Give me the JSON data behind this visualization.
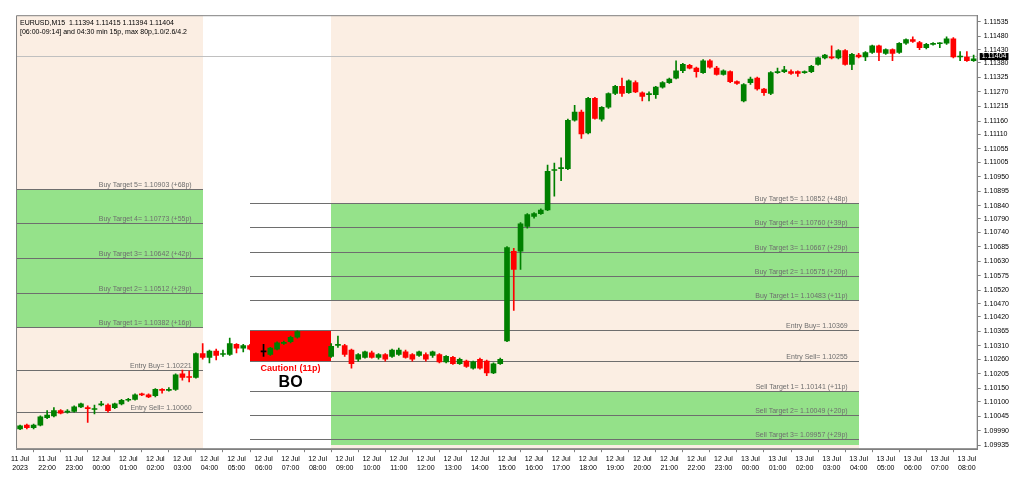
{
  "chart_data": {
    "type": "candlestick",
    "title": "EURUSD,M15  1.11394 1.11415 1.11394 1.11404",
    "subtitle": "[06:00-09:14] and 04:30 min 15p, max 80p,1.0/2.6/4.2",
    "x": [
      "2023-07-11T21:00",
      "2023-07-11T21:15",
      "2023-07-11T21:30",
      "2023-07-11T21:45",
      "2023-07-11T22:00",
      "2023-07-11T22:15",
      "2023-07-11T22:30",
      "2023-07-11T22:45",
      "2023-07-11T23:00",
      "2023-07-11T23:15",
      "2023-07-11T23:30",
      "2023-07-11T23:45",
      "2023-07-12T00:00",
      "2023-07-12T00:15",
      "2023-07-12T00:30",
      "2023-07-12T00:45",
      "2023-07-12T01:00",
      "2023-07-12T01:15",
      "2023-07-12T01:30",
      "2023-07-12T01:45",
      "2023-07-12T02:00",
      "2023-07-12T02:15",
      "2023-07-12T02:30",
      "2023-07-12T02:45",
      "2023-07-12T03:00",
      "2023-07-12T03:15",
      "2023-07-12T03:30",
      "2023-07-12T03:45",
      "2023-07-12T04:00",
      "2023-07-12T04:15",
      "2023-07-12T04:30",
      "2023-07-12T04:45",
      "2023-07-12T05:00",
      "2023-07-12T05:15",
      "2023-07-12T05:30",
      "2023-07-12T06:00",
      "2023-07-12T06:15",
      "2023-07-12T06:30",
      "2023-07-12T06:45",
      "2023-07-12T07:00",
      "2023-07-12T07:15",
      "2023-07-12T08:30",
      "2023-07-12T08:45",
      "2023-07-12T09:00",
      "2023-07-12T09:15",
      "2023-07-12T09:30",
      "2023-07-12T09:45",
      "2023-07-12T10:00",
      "2023-07-12T10:15",
      "2023-07-12T10:30",
      "2023-07-12T10:45",
      "2023-07-12T11:00",
      "2023-07-12T11:15",
      "2023-07-12T11:30",
      "2023-07-12T11:45",
      "2023-07-12T12:00",
      "2023-07-12T12:15",
      "2023-07-12T12:30",
      "2023-07-12T12:45",
      "2023-07-12T13:00",
      "2023-07-12T13:15",
      "2023-07-12T13:30",
      "2023-07-12T13:45",
      "2023-07-12T14:00",
      "2023-07-12T14:15",
      "2023-07-12T14:30",
      "2023-07-12T14:45",
      "2023-07-12T15:00",
      "2023-07-12T15:15",
      "2023-07-12T15:30",
      "2023-07-12T15:45",
      "2023-07-12T16:00",
      "2023-07-12T16:15",
      "2023-07-12T16:30",
      "2023-07-12T16:45",
      "2023-07-12T17:00",
      "2023-07-12T17:15",
      "2023-07-12T17:30",
      "2023-07-12T17:45",
      "2023-07-12T18:00",
      "2023-07-12T18:15",
      "2023-07-12T18:30",
      "2023-07-12T18:45",
      "2023-07-12T19:00",
      "2023-07-12T19:15",
      "2023-07-12T19:30",
      "2023-07-12T19:45",
      "2023-07-12T20:00",
      "2023-07-12T20:15",
      "2023-07-12T20:30",
      "2023-07-12T20:45",
      "2023-07-12T21:00",
      "2023-07-12T21:15",
      "2023-07-12T21:30",
      "2023-07-12T21:45",
      "2023-07-12T22:00",
      "2023-07-12T22:15",
      "2023-07-12T22:30",
      "2023-07-12T22:45",
      "2023-07-12T23:00",
      "2023-07-12T23:15",
      "2023-07-12T23:30",
      "2023-07-12T23:45",
      "2023-07-13T00:00",
      "2023-07-13T00:15",
      "2023-07-13T00:30",
      "2023-07-13T00:45",
      "2023-07-13T01:00",
      "2023-07-13T01:15",
      "2023-07-13T01:30",
      "2023-07-13T01:45",
      "2023-07-13T02:00",
      "2023-07-13T02:15",
      "2023-07-13T02:30",
      "2023-07-13T02:45",
      "2023-07-13T03:00",
      "2023-07-13T03:15",
      "2023-07-13T03:30",
      "2023-07-13T03:45",
      "2023-07-13T04:00",
      "2023-07-13T04:15",
      "2023-07-13T04:30",
      "2023-07-13T04:45",
      "2023-07-13T05:00",
      "2023-07-13T05:15",
      "2023-07-13T05:30",
      "2023-07-13T05:45",
      "2023-07-13T06:00",
      "2023-07-13T06:15",
      "2023-07-13T06:30",
      "2023-07-13T06:45",
      "2023-07-13T07:00",
      "2023-07-13T07:15",
      "2023-07-13T07:30",
      "2023-07-13T07:45",
      "2023-07-13T08:00",
      "2023-07-13T08:15"
    ],
    "ohlc": [
      [
        1.09997,
        1.10011,
        1.09994,
        1.10008
      ],
      [
        1.10011,
        1.10015,
        1.09997,
        1.10001
      ],
      [
        1.10001,
        1.10015,
        1.09997,
        1.10011
      ],
      [
        1.10011,
        1.10046,
        1.10008,
        1.10042
      ],
      [
        1.10039,
        1.10066,
        1.10035,
        1.10049
      ],
      [
        1.10046,
        1.10077,
        1.10042,
        1.10066
      ],
      [
        1.10066,
        1.1007,
        1.10053,
        1.10056
      ],
      [
        1.1006,
        1.1007,
        1.10056,
        1.10063
      ],
      [
        1.10063,
        1.10084,
        1.1006,
        1.1008
      ],
      [
        1.1008,
        1.10094,
        1.10077,
        1.10091
      ],
      [
        1.10077,
        1.10084,
        1.10021,
        1.10073
      ],
      [
        1.1007,
        1.10087,
        1.10053,
        1.10073
      ],
      [
        1.10087,
        1.10101,
        1.10084,
        1.10091
      ],
      [
        1.10087,
        1.10091,
        1.1006,
        1.10066
      ],
      [
        1.10077,
        1.10094,
        1.10073,
        1.10091
      ],
      [
        1.10091,
        1.10108,
        1.10087,
        1.10105
      ],
      [
        1.10105,
        1.10112,
        1.10101,
        1.10108
      ],
      [
        1.10108,
        1.10129,
        1.10105,
        1.10125
      ],
      [
        1.10127,
        1.10132,
        1.10122,
        1.10125
      ],
      [
        1.10125,
        1.10129,
        1.10115,
        1.10118
      ],
      [
        1.10122,
        1.10149,
        1.10118,
        1.10146
      ],
      [
        1.10146,
        1.10149,
        1.10132,
        1.10142
      ],
      [
        1.10142,
        1.10153,
        1.10139,
        1.10146
      ],
      [
        1.10146,
        1.10205,
        1.10142,
        1.10201
      ],
      [
        1.10205,
        1.10219,
        1.10181,
        1.10191
      ],
      [
        1.10194,
        1.10215,
        1.10174,
        1.10191
      ],
      [
        1.10191,
        1.10284,
        1.10188,
        1.10281
      ],
      [
        1.10281,
        1.10319,
        1.1026,
        1.10267
      ],
      [
        1.10267,
        1.10295,
        1.10246,
        1.10291
      ],
      [
        1.10291,
        1.10298,
        1.10257,
        1.10274
      ],
      [
        1.10278,
        1.10295,
        1.10271,
        1.10281
      ],
      [
        1.10278,
        1.1034,
        1.10274,
        1.10319
      ],
      [
        1.10316,
        1.10319,
        1.10284,
        1.10302
      ],
      [
        1.10302,
        1.10316,
        1.10288,
        1.10312
      ],
      [
        1.10312,
        1.10316,
        1.10295,
        1.10298
      ],
      [
        1.10288,
        1.10316,
        1.10271,
        1.10288
      ],
      [
        1.10278,
        1.10305,
        1.10274,
        1.10302
      ],
      [
        1.10298,
        1.10326,
        1.10295,
        1.10322
      ],
      [
        1.1032,
        1.10329,
        1.10316,
        1.10324
      ],
      [
        1.10326,
        1.10347,
        1.10322,
        1.10343
      ],
      [
        1.10343,
        1.10367,
        1.1034,
        1.10364
      ],
      [
        1.10271,
        1.10319,
        1.10267,
        1.10309
      ],
      [
        1.10312,
        1.10347,
        1.10305,
        1.10316
      ],
      [
        1.10312,
        1.10316,
        1.10271,
        1.10278
      ],
      [
        1.10295,
        1.10298,
        1.10226,
        1.10243
      ],
      [
        1.1026,
        1.10281,
        1.10253,
        1.10278
      ],
      [
        1.10267,
        1.10291,
        1.10264,
        1.10288
      ],
      [
        1.10284,
        1.10291,
        1.10264,
        1.10267
      ],
      [
        1.10267,
        1.10281,
        1.1026,
        1.10278
      ],
      [
        1.10278,
        1.10281,
        1.10253,
        1.1026
      ],
      [
        1.10271,
        1.10298,
        1.10267,
        1.10295
      ],
      [
        1.10278,
        1.10302,
        1.10274,
        1.10295
      ],
      [
        1.10288,
        1.10295,
        1.10264,
        1.10267
      ],
      [
        1.10278,
        1.10281,
        1.10253,
        1.1026
      ],
      [
        1.10274,
        1.10291,
        1.10271,
        1.10288
      ],
      [
        1.10278,
        1.10284,
        1.10253,
        1.1026
      ],
      [
        1.10274,
        1.10291,
        1.10267,
        1.10288
      ],
      [
        1.10278,
        1.10281,
        1.10246,
        1.1025
      ],
      [
        1.1025,
        1.10274,
        1.10246,
        1.10271
      ],
      [
        1.10267,
        1.10271,
        1.1024,
        1.10243
      ],
      [
        1.10243,
        1.10264,
        1.1024,
        1.1026
      ],
      [
        1.10253,
        1.10257,
        1.10229,
        1.10233
      ],
      [
        1.10226,
        1.10253,
        1.10222,
        1.1025
      ],
      [
        1.1026,
        1.10264,
        1.10222,
        1.10226
      ],
      [
        1.10253,
        1.10257,
        1.10198,
        1.10208
      ],
      [
        1.10208,
        1.10246,
        1.10205,
        1.10243
      ],
      [
        1.10243,
        1.10264,
        1.1024,
        1.1026
      ],
      [
        1.10329,
        1.10686,
        1.10326,
        1.10682
      ],
      [
        1.10668,
        1.10679,
        1.10444,
        1.10599
      ],
      [
        1.10668,
        1.10776,
        1.10599,
        1.10772
      ],
      [
        1.10762,
        1.1081,
        1.10755,
        1.10807
      ],
      [
        1.108,
        1.10814,
        1.10793,
        1.1081
      ],
      [
        1.1081,
        1.10828,
        1.10807,
        1.10824
      ],
      [
        1.10824,
        1.10994,
        1.10821,
        1.1097
      ],
      [
        1.10973,
        1.11001,
        1.10876,
        1.10976
      ],
      [
        1.1098,
        1.11021,
        1.10935,
        1.10983
      ],
      [
        1.1098,
        1.11167,
        1.10976,
        1.11163
      ],
      [
        1.11163,
        1.11219,
        1.1116,
        1.11194
      ],
      [
        1.11194,
        1.11201,
        1.11094,
        1.11111
      ],
      [
        1.11115,
        1.1125,
        1.11111,
        1.11246
      ],
      [
        1.11246,
        1.1125,
        1.11167,
        1.1117
      ],
      [
        1.11167,
        1.11215,
        1.1116,
        1.11212
      ],
      [
        1.11212,
        1.11267,
        1.11208,
        1.11264
      ],
      [
        1.11264,
        1.11295,
        1.1126,
        1.11291
      ],
      [
        1.11291,
        1.11322,
        1.11253,
        1.11264
      ],
      [
        1.11267,
        1.11316,
        1.11264,
        1.11312
      ],
      [
        1.11305,
        1.11312,
        1.11267,
        1.1127
      ],
      [
        1.11267,
        1.1127,
        1.11236,
        1.11253
      ],
      [
        1.1126,
        1.1127,
        1.11236,
        1.11262
      ],
      [
        1.1126,
        1.11291,
        1.11246,
        1.11288
      ],
      [
        1.11288,
        1.11309,
        1.11284,
        1.11305
      ],
      [
        1.11305,
        1.11322,
        1.11302,
        1.11319
      ],
      [
        1.11322,
        1.11388,
        1.11319,
        1.1135
      ],
      [
        1.1135,
        1.11378,
        1.11343,
        1.11374
      ],
      [
        1.11371,
        1.11374,
        1.11357,
        1.1136
      ],
      [
        1.1136,
        1.11364,
        1.11326,
        1.11347
      ],
      [
        1.11343,
        1.11392,
        1.1134,
        1.11388
      ],
      [
        1.11388,
        1.11392,
        1.1136,
        1.11364
      ],
      [
        1.1136,
        1.11367,
        1.11333,
        1.11336
      ],
      [
        1.11336,
        1.11354,
        1.11333,
        1.1135
      ],
      [
        1.11347,
        1.1135,
        1.11305,
        1.11309
      ],
      [
        1.11309,
        1.11312,
        1.11298,
        1.11302
      ],
      [
        1.11236,
        1.11302,
        1.11232,
        1.11298
      ],
      [
        1.11305,
        1.11326,
        1.11298,
        1.11319
      ],
      [
        1.11322,
        1.11326,
        1.11277,
        1.11281
      ],
      [
        1.11281,
        1.11284,
        1.11257,
        1.11267
      ],
      [
        1.11264,
        1.11347,
        1.1126,
        1.11343
      ],
      [
        1.11343,
        1.1136,
        1.1134,
        1.11347
      ],
      [
        1.11347,
        1.11367,
        1.11343,
        1.11354
      ],
      [
        1.11347,
        1.11354,
        1.11336,
        1.1134
      ],
      [
        1.11347,
        1.1135,
        1.11329,
        1.1134
      ],
      [
        1.11343,
        1.1135,
        1.1134,
        1.11347
      ],
      [
        1.11347,
        1.11371,
        1.11343,
        1.11367
      ],
      [
        1.11374,
        1.11402,
        1.11371,
        1.11399
      ],
      [
        1.11399,
        1.11412,
        1.11395,
        1.11409
      ],
      [
        1.11402,
        1.11444,
        1.11395,
        1.11399
      ],
      [
        1.11399,
        1.1143,
        1.11395,
        1.11426
      ],
      [
        1.11426,
        1.1143,
        1.11371,
        1.11374
      ],
      [
        1.11374,
        1.11416,
        1.11354,
        1.11412
      ],
      [
        1.11409,
        1.11416,
        1.11399,
        1.11402
      ],
      [
        1.11402,
        1.11423,
        1.11388,
        1.11419
      ],
      [
        1.11419,
        1.11447,
        1.11416,
        1.11444
      ],
      [
        1.11444,
        1.11447,
        1.11388,
        1.11419
      ],
      [
        1.11416,
        1.11433,
        1.11412,
        1.1143
      ],
      [
        1.1143,
        1.11433,
        1.11388,
        1.11416
      ],
      [
        1.11419,
        1.11457,
        1.11416,
        1.11454
      ],
      [
        1.11454,
        1.11471,
        1.1145,
        1.11468
      ],
      [
        1.11468,
        1.11478,
        1.11457,
        1.11461
      ],
      [
        1.11457,
        1.11461,
        1.1143,
        1.11437
      ],
      [
        1.11437,
        1.11454,
        1.11433,
        1.1145
      ],
      [
        1.1145,
        1.11457,
        1.11447,
        1.11454
      ],
      [
        1.11452,
        1.11457,
        1.11437,
        1.11454
      ],
      [
        1.11454,
        1.11478,
        1.1145,
        1.11471
      ],
      [
        1.11471,
        1.11475,
        1.11399,
        1.11402
      ],
      [
        1.11402,
        1.11423,
        1.11388,
        1.11404
      ],
      [
        1.11402,
        1.11423,
        1.11385,
        1.11388
      ],
      [
        1.11388,
        1.11409,
        1.11385,
        1.11395
      ]
    ],
    "colors": [
      "#008000",
      "#ff0000",
      "#008000",
      "#008000",
      "#008000",
      "#008000",
      "#ff0000",
      "#008000",
      "#008000",
      "#008000",
      "#ff0000",
      "#008000",
      "#008000",
      "#ff0000",
      "#008000",
      "#008000",
      "#008000",
      "#008000",
      "#ff0000",
      "#ff0000",
      "#008000",
      "#ff0000",
      "#008000",
      "#008000",
      "#ff0000",
      "#ff0000",
      "#008000",
      "#ff0000",
      "#008000",
      "#ff0000",
      "#008000",
      "#008000",
      "#ff0000",
      "#008000",
      "#ff0000",
      "#000000",
      "#008000",
      "#008000",
      "#008000",
      "#008000",
      "#008000",
      "#008000",
      "#008000",
      "#ff0000",
      "#ff0000",
      "#008000",
      "#008000",
      "#ff0000",
      "#008000",
      "#ff0000",
      "#008000",
      "#008000",
      "#ff0000",
      "#ff0000",
      "#008000",
      "#ff0000",
      "#008000",
      "#ff0000",
      "#008000",
      "#ff0000",
      "#008000",
      "#ff0000",
      "#008000",
      "#ff0000",
      "#ff0000",
      "#008000",
      "#008000",
      "#008000",
      "#ff0000",
      "#008000",
      "#008000",
      "#008000",
      "#008000",
      "#008000",
      "#008000",
      "#008000",
      "#008000",
      "#008000",
      "#ff0000",
      "#008000",
      "#ff0000",
      "#008000",
      "#008000",
      "#008000",
      "#ff0000",
      "#008000",
      "#ff0000",
      "#ff0000",
      "#008000",
      "#008000",
      "#008000",
      "#008000",
      "#008000",
      "#008000",
      "#ff0000",
      "#ff0000",
      "#008000",
      "#ff0000",
      "#ff0000",
      "#008000",
      "#ff0000",
      "#ff0000",
      "#008000",
      "#008000",
      "#ff0000",
      "#ff0000",
      "#008000",
      "#008000",
      "#008000",
      "#ff0000",
      "#ff0000",
      "#008000",
      "#008000",
      "#008000",
      "#008000",
      "#ff0000",
      "#008000",
      "#ff0000",
      "#008000",
      "#ff0000",
      "#008000",
      "#008000",
      "#ff0000",
      "#008000",
      "#ff0000",
      "#008000",
      "#008000",
      "#ff0000",
      "#ff0000",
      "#008000",
      "#008000",
      "#008000",
      "#008000",
      "#ff0000",
      "#008000",
      "#ff0000",
      "#008000"
    ],
    "series": [
      {
        "type": "line",
        "color": "#95e28a",
        "x": [
          "2023-07-11T20:51",
          "2023-07-12T03:45"
        ],
        "values": [
          null,
          null
        ],
        "lower": [
          1.10382,
          1.10382
        ],
        "upper": [
          1.10903,
          1.10903
        ]
      },
      {
        "type": "line",
        "color": "#95e28a",
        "x": [
          "2023-07-12T08:30",
          "2023-07-13T04:00"
        ],
        "values": [
          null,
          null
        ],
        "lower": [
          1.10483,
          1.10483
        ],
        "upper": [
          1.10852,
          1.10852
        ]
      },
      {
        "type": "line",
        "color": "#94e189",
        "x": [
          "2023-07-12T08:30",
          "2023-07-13T04:00"
        ],
        "values": [
          null,
          null
        ],
        "lower": [
          1.09935,
          1.09935
        ],
        "upper": [
          1.10141,
          1.10141
        ]
      },
      {
        "type": "line",
        "name": "Caution! (11p)",
        "color": "#ff0000",
        "x": [
          "2023-07-12T05:30",
          "2023-07-12T08:30"
        ],
        "values": [
          null,
          null
        ],
        "lower": [
          1.10255,
          1.10255
        ],
        "upper": [
          1.10369,
          1.10369
        ]
      },
      {
        "type": "line",
        "name": "Buy Target 5= 1.10903 (+68p)",
        "color": "#6e6e6e",
        "x": [
          "2023-07-11T20:51",
          "2023-07-12T03:45"
        ],
        "values": [
          1.10903,
          1.10903
        ]
      },
      {
        "type": "line",
        "name": "Buy Target 4= 1.10773 (+55p)",
        "color": "#6e6e6e",
        "x": [
          "2023-07-11T20:51",
          "2023-07-12T03:45"
        ],
        "values": [
          1.10773,
          1.10773
        ]
      },
      {
        "type": "line",
        "name": "Buy Target 3= 1.10642 (+42p)",
        "color": "#6e6e6e",
        "x": [
          "2023-07-11T20:51",
          "2023-07-12T03:45"
        ],
        "values": [
          1.10642,
          1.10642
        ]
      },
      {
        "type": "line",
        "name": "Buy Target 2= 1.10512 (+29p)",
        "color": "#6e6e6e",
        "x": [
          "2023-07-11T20:51",
          "2023-07-12T03:45"
        ],
        "values": [
          1.10512,
          1.10512
        ]
      },
      {
        "type": "line",
        "name": "Buy Target 1= 1.10382 (+16p)",
        "color": "#6e6e6e",
        "x": [
          "2023-07-11T20:51",
          "2023-07-12T03:45"
        ],
        "values": [
          1.10382,
          1.10382
        ]
      },
      {
        "type": "line",
        "name": "Entry Buy= 1.10221",
        "color": "#6e6e6e",
        "x": [
          "2023-07-11T20:51",
          "2023-07-12T03:45"
        ],
        "values": [
          1.10221,
          1.10221
        ]
      },
      {
        "type": "line",
        "name": "Entry Sell= 1.10060",
        "color": "#6e6e6e",
        "x": [
          "2023-07-11T20:51",
          "2023-07-12T03:45"
        ],
        "values": [
          1.1006,
          1.1006
        ]
      },
      {
        "type": "line",
        "name": "Buy Target 5= 1.10852 (+48p)",
        "color": "#6e6e6e",
        "x": [
          "2023-07-12T05:30",
          "2023-07-13T04:00"
        ],
        "values": [
          1.10852,
          1.10852
        ]
      },
      {
        "type": "line",
        "name": "Buy Target 4= 1.10760 (+39p)",
        "color": "#6e6e6e",
        "x": [
          "2023-07-12T05:30",
          "2023-07-13T04:00"
        ],
        "values": [
          1.1076,
          1.1076
        ]
      },
      {
        "type": "line",
        "name": "Buy Target 3= 1.10667 (+29p)",
        "color": "#6e6e6e",
        "x": [
          "2023-07-12T05:30",
          "2023-07-13T04:00"
        ],
        "values": [
          1.10667,
          1.10667
        ]
      },
      {
        "type": "line",
        "name": "Buy Target 2= 1.10575 (+20p)",
        "color": "#6e6e6e",
        "x": [
          "2023-07-12T05:30",
          "2023-07-13T04:00"
        ],
        "values": [
          1.10575,
          1.10575
        ]
      },
      {
        "type": "line",
        "name": "Buy Target 1= 1.10483 (+11p)",
        "color": "#6e6e6e",
        "x": [
          "2023-07-12T05:30",
          "2023-07-13T04:00"
        ],
        "values": [
          1.10483,
          1.10483
        ]
      },
      {
        "type": "line",
        "name": "Entry Buy= 1.10369",
        "color": "#6e6e6e",
        "x": [
          "2023-07-12T05:30",
          "2023-07-13T04:00"
        ],
        "values": [
          1.10369,
          1.10369
        ]
      },
      {
        "type": "line",
        "name": "Entry Sell= 1.10255",
        "color": "#6e6e6e",
        "x": [
          "2023-07-12T05:30",
          "2023-07-13T04:00"
        ],
        "values": [
          1.10255,
          1.10255
        ]
      },
      {
        "type": "line",
        "name": "Sell Target 1= 1.10141 (+11p)",
        "color": "#6e6e6e",
        "x": [
          "2023-07-12T05:30",
          "2023-07-13T04:00"
        ],
        "values": [
          1.10141,
          1.10141
        ]
      },
      {
        "type": "line",
        "name": "Sell Target 2= 1.10049 (+20p)",
        "color": "#6e6e6e",
        "x": [
          "2023-07-12T05:30",
          "2023-07-13T04:00"
        ],
        "values": [
          1.10049,
          1.10049
        ]
      },
      {
        "type": "line",
        "name": "Sell Target 3= 1.09957 (+29p)",
        "color": "#6e6e6e",
        "x": [
          "2023-07-12T05:30",
          "2023-07-13T04:00"
        ],
        "values": [
          1.09957,
          1.09957
        ]
      }
    ],
    "xlim": [
      "2023-07-11T20:51",
      "2023-07-13T08:24"
    ],
    "xticks": [
      {
        "value": "2023-07-11T21:00",
        "label": "11 Jul 2023"
      },
      {
        "value": "2023-07-11T22:00",
        "label": "11 Jul 22:00"
      },
      {
        "value": "2023-07-11T23:00",
        "label": "11 Jul 23:00"
      },
      {
        "value": "2023-07-12T00:00",
        "label": "12 Jul 00:00"
      },
      {
        "value": "2023-07-12T01:00",
        "label": "12 Jul 01:00"
      },
      {
        "value": "2023-07-12T02:00",
        "label": "12 Jul 02:00"
      },
      {
        "value": "2023-07-12T03:00",
        "label": "12 Jul 03:00"
      },
      {
        "value": "2023-07-12T04:00",
        "label": "12 Jul 04:00"
      },
      {
        "value": "2023-07-12T05:00",
        "label": "12 Jul 05:00"
      },
      {
        "value": "2023-07-12T06:00",
        "label": "12 Jul 06:00"
      },
      {
        "value": "2023-07-12T07:00",
        "label": "12 Jul 07:00"
      },
      {
        "value": "2023-07-12T08:00",
        "label": "12 Jul 08:00"
      },
      {
        "value": "2023-07-12T09:00",
        "label": "12 Jul 09:00"
      },
      {
        "value": "2023-07-12T10:00",
        "label": "12 Jul 10:00"
      },
      {
        "value": "2023-07-12T11:00",
        "label": "12 Jul 11:00"
      },
      {
        "value": "2023-07-12T12:00",
        "label": "12 Jul 12:00"
      },
      {
        "value": "2023-07-12T13:00",
        "label": "12 Jul 13:00"
      },
      {
        "value": "2023-07-12T14:00",
        "label": "12 Jul 14:00"
      },
      {
        "value": "2023-07-12T15:00",
        "label": "12 Jul 15:00"
      },
      {
        "value": "2023-07-12T16:00",
        "label": "12 Jul 16:00"
      },
      {
        "value": "2023-07-12T17:00",
        "label": "12 Jul 17:00"
      },
      {
        "value": "2023-07-12T18:00",
        "label": "12 Jul 18:00"
      },
      {
        "value": "2023-07-12T19:00",
        "label": "12 Jul 19:00"
      },
      {
        "value": "2023-07-12T20:00",
        "label": "12 Jul 20:00"
      },
      {
        "value": "2023-07-12T21:00",
        "label": "12 Jul 21:00"
      },
      {
        "value": "2023-07-12T22:00",
        "label": "12 Jul 22:00"
      },
      {
        "value": "2023-07-12T23:00",
        "label": "12 Jul 23:00"
      },
      {
        "value": "2023-07-13T00:00",
        "label": "13 Jul 00:00"
      },
      {
        "value": "2023-07-13T01:00",
        "label": "13 Jul 01:00"
      },
      {
        "value": "2023-07-13T02:00",
        "label": "13 Jul 02:00"
      },
      {
        "value": "2023-07-13T03:00",
        "label": "13 Jul 03:00"
      },
      {
        "value": "2023-07-13T04:00",
        "label": "13 Jul 04:00"
      },
      {
        "value": "2023-07-13T05:00",
        "label": "13 Jul 05:00"
      },
      {
        "value": "2023-07-13T06:00",
        "label": "13 Jul 06:00"
      },
      {
        "value": "2023-07-13T07:00",
        "label": "13 Jul 07:00"
      },
      {
        "value": "2023-07-13T08:00",
        "label": "13 Jul 08:00"
      }
    ],
    "ylim": [
      1.0992,
      1.1156
    ],
    "yticks": [
      1.11535,
      {
        "value": 1.1148,
        "label": "1.11480"
      },
      {
        "value": 1.1143,
        "label": "1.11430"
      },
      {
        "value": 1.1138,
        "label": "1.11380"
      },
      1.11325,
      {
        "value": 1.1127,
        "label": "1.11270"
      },
      1.11215,
      {
        "value": 1.1116,
        "label": "1.11160"
      },
      {
        "value": 1.1111,
        "label": "1.11110"
      },
      1.11055,
      1.11005,
      {
        "value": 1.1095,
        "label": "1.10950"
      },
      1.10895,
      {
        "value": 1.1084,
        "label": "1.10840"
      },
      {
        "value": 1.1079,
        "label": "1.10790"
      },
      {
        "value": 1.1074,
        "label": "1.10740"
      },
      1.10685,
      {
        "value": 1.1063,
        "label": "1.10630"
      },
      1.10575,
      {
        "value": 1.1052,
        "label": "1.10520"
      },
      {
        "value": 1.1047,
        "label": "1.10470"
      },
      {
        "value": 1.1042,
        "label": "1.10420"
      },
      1.10365,
      {
        "value": 1.1031,
        "label": "1.10310"
      },
      {
        "value": 1.1026,
        "label": "1.10260"
      },
      1.10205,
      {
        "value": 1.1015,
        "label": "1.10150"
      },
      {
        "value": 1.101,
        "label": "1.10100"
      },
      1.10045,
      {
        "value": 1.0999,
        "label": "1.09990"
      },
      1.09935
    ],
    "bands": [
      {
        "axis": "x",
        "from": "2023-07-11T20:51",
        "to": "2023-07-12T03:45",
        "color": "#fbeee3"
      },
      {
        "axis": "x",
        "from": "2023-07-12T08:30",
        "to": "2023-07-13T04:00",
        "color": "#fbeee3"
      }
    ],
    "ref_lines": [
      {
        "axis": "y",
        "value": 1.11404,
        "label": "1.11404",
        "color": "#c0c0c0"
      }
    ],
    "annotations": [
      "BO"
    ]
  }
}
